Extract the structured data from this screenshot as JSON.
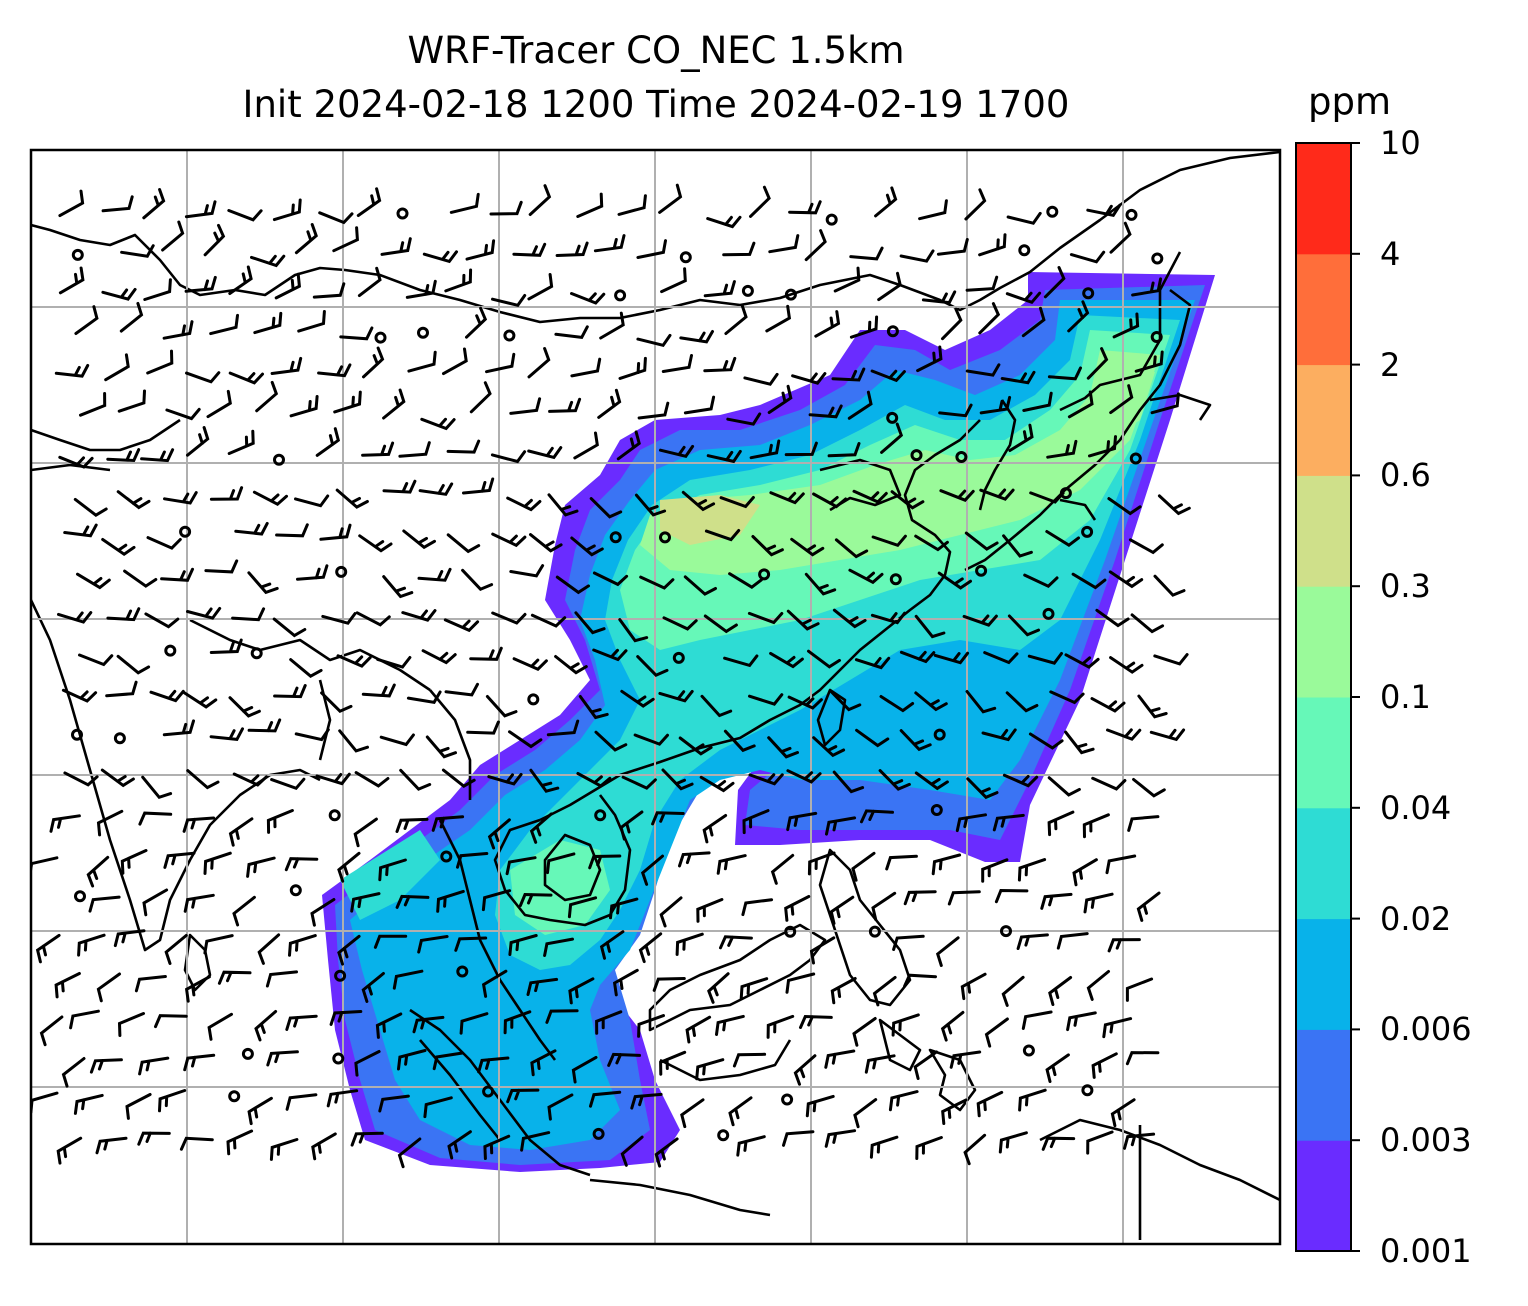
{
  "figure": {
    "title_line1": "WRF-Tracer CO_NEC 1.5km",
    "title_line2": "Init 2024-02-18 1200 Time 2024-02-19 1700"
  },
  "colorbar": {
    "unit": "ppm",
    "levels": [
      "0.001",
      "0.003",
      "0.006",
      "0.02",
      "0.04",
      "0.1",
      "0.3",
      "0.6",
      "2",
      "4",
      "10"
    ],
    "colors": [
      "#6a2cff",
      "#3a74f4",
      "#08b2ea",
      "#2edcd4",
      "#66f8b8",
      "#9afa9a",
      "#cfe08a",
      "#fcae60",
      "#ff6e3a",
      "#ff2a1a"
    ]
  },
  "map": {
    "gridlines": true,
    "coastline_color": "#000000",
    "grid_color": "#b0b0b0"
  }
}
